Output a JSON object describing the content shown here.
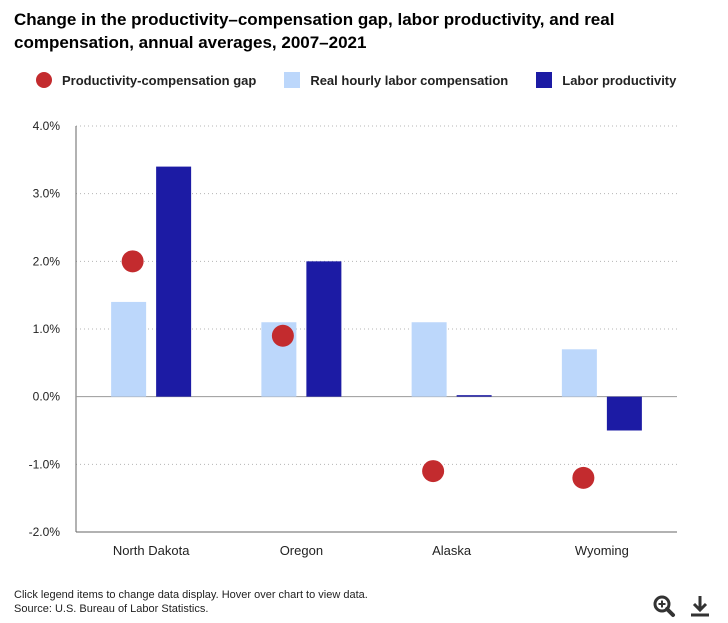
{
  "title": "Change in the productivity–compensation gap, labor productivity, and real compensation, annual averages, 2007–2021",
  "legend": {
    "items": [
      {
        "label": "Productivity-compensation gap",
        "color": "#c32b2e",
        "shape": "circle"
      },
      {
        "label": "Real hourly labor compensation",
        "color": "#bcd7fb",
        "shape": "square"
      },
      {
        "label": "Labor productivity",
        "color": "#1c1ba4",
        "shape": "square"
      }
    ]
  },
  "footer": {
    "note": "Click legend items to change data display. Hover over chart to view data.",
    "source": "Source: U.S. Bureau of Labor Statistics."
  },
  "icons": {
    "zoom": "zoom-in-icon",
    "download": "download-icon",
    "color": "#333333"
  },
  "chart_data": {
    "type": "bar",
    "categories": [
      "North Dakota",
      "Oregon",
      "Alaska",
      "Wyoming"
    ],
    "series": [
      {
        "name": "Real hourly labor compensation",
        "type": "bar",
        "color": "#bcd7fb",
        "values": [
          1.4,
          1.1,
          1.1,
          0.7
        ]
      },
      {
        "name": "Labor productivity",
        "type": "bar",
        "color": "#1c1ba4",
        "values": [
          3.4,
          2.0,
          0.0,
          -0.5
        ]
      },
      {
        "name": "Productivity-compensation gap",
        "type": "scatter",
        "color": "#c32b2e",
        "values": [
          2.0,
          0.9,
          -1.1,
          -1.2
        ]
      }
    ],
    "ylim": [
      -2.0,
      4.0
    ],
    "yticks": [
      -2.0,
      -1.0,
      0.0,
      1.0,
      2.0,
      3.0,
      4.0
    ],
    "ytick_labels": [
      "-2.0%",
      "-1.0%",
      "0.0%",
      "1.0%",
      "2.0%",
      "3.0%",
      "4.0%"
    ],
    "xlabel": "",
    "ylabel": "",
    "grid": "horizontal dotted",
    "legend_position": "top"
  }
}
